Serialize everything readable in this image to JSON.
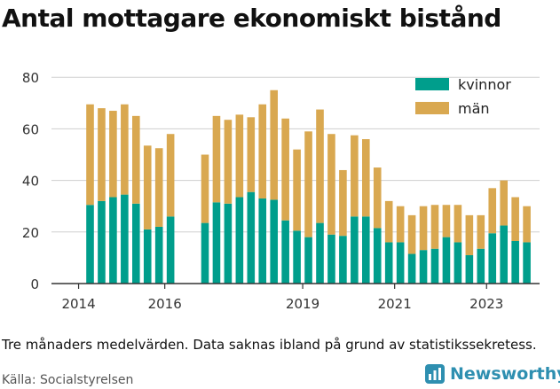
{
  "title": "Antal mottagare ekonomiskt bistånd",
  "note": "Tre månaders medelvärden. Data saknas ibland på grund av statistikssekretess.",
  "source": "Källa: Socialstyrelsen",
  "brand": "Newsworthy",
  "colors": {
    "kvinnor": "#009e8c",
    "man": "#d9a850",
    "axis": "#333333",
    "grid": "#cfcfcf",
    "brand": "#2e8fb0"
  },
  "chart_data": {
    "type": "bar",
    "stacked": true,
    "y_ticks": [
      0,
      20,
      40,
      60,
      80
    ],
    "ylim": [
      0,
      85
    ],
    "x_ticks": [
      "2014",
      "2016",
      "2019",
      "2021",
      "2023"
    ],
    "legend": [
      "kvinnor",
      "män"
    ],
    "legend_position": "top-right",
    "grid": "horizontal",
    "series": [
      {
        "name": "kvinnor",
        "values": [
          30.5,
          32,
          33.5,
          34.5,
          31,
          21,
          22,
          26,
          null,
          null,
          23.5,
          31.5,
          31,
          33.5,
          35.5,
          33,
          32.5,
          24.5,
          20.5,
          18,
          23.5,
          19,
          18.5,
          26,
          26,
          21.5,
          16,
          16,
          11.5,
          13,
          13.5,
          18,
          16,
          11,
          13.5,
          19.5,
          22.5,
          16.5,
          16
        ]
      },
      {
        "name": "män",
        "values": [
          39,
          36,
          33.5,
          35,
          34,
          32.5,
          30.5,
          32,
          null,
          null,
          26.5,
          33.5,
          32.5,
          32,
          29,
          36.5,
          42.5,
          39.5,
          31.5,
          41,
          44,
          39,
          25.5,
          31.5,
          30,
          23.5,
          16,
          14,
          15,
          17,
          17,
          12.5,
          14.5,
          15.5,
          13,
          17.5,
          17.5,
          17,
          14
        ]
      }
    ]
  }
}
